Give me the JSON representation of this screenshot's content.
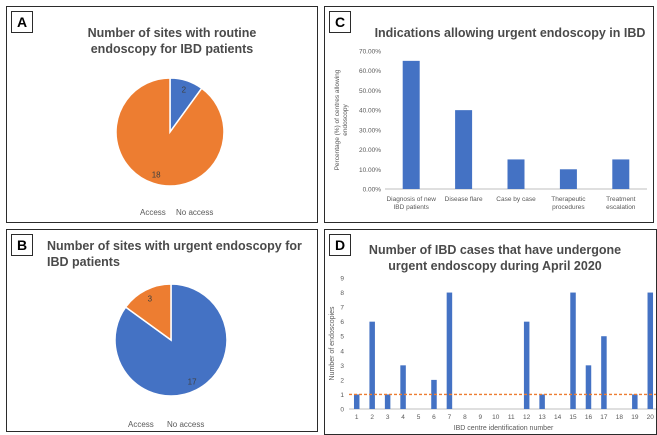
{
  "panels": {
    "a": {
      "letter": "A"
    },
    "b": {
      "letter": "B"
    },
    "c": {
      "letter": "C"
    },
    "d": {
      "letter": "D"
    }
  },
  "chart_data": [
    {
      "id": "A",
      "type": "pie",
      "title": "Number of sites with routine endoscopy for IBD patients",
      "labels": [
        "Access",
        "No access"
      ],
      "values": [
        2,
        18
      ],
      "colors": [
        "#4472c4",
        "#ed7d31"
      ],
      "legend_position": "bottom"
    },
    {
      "id": "B",
      "type": "pie",
      "title": "Number of sites with urgent endoscopy for IBD patients",
      "labels": [
        "Access",
        "No access"
      ],
      "values": [
        17,
        3
      ],
      "colors": [
        "#4472c4",
        "#ed7d31"
      ],
      "legend_position": "bottom"
    },
    {
      "id": "C",
      "type": "bar",
      "title": "Indications allowing urgent endoscopy in IBD",
      "categories": [
        "Diagnosis of new IBD patients",
        "Disease flare",
        "Case by case",
        "Therapeutic procedures",
        "Treatment escalation"
      ],
      "values": [
        65,
        40,
        15,
        10,
        15
      ],
      "ylabel": "Percentage (%) of centres allowing endoscopy",
      "ylim": [
        0,
        70
      ],
      "yticks": [
        "0.00%",
        "10.00%",
        "20.00%",
        "30.00%",
        "40.00%",
        "50.00%",
        "60.00%",
        "70.00%"
      ],
      "color": "#4472c4"
    },
    {
      "id": "D",
      "type": "bar",
      "title": "Number of IBD cases that have undergone urgent endoscopy during April 2020",
      "x": [
        "1",
        "2",
        "3",
        "4",
        "5",
        "6",
        "7",
        "8",
        "9",
        "10",
        "11",
        "12",
        "13",
        "14",
        "15",
        "16",
        "17",
        "18",
        "19",
        "20"
      ],
      "values": [
        1,
        6,
        1,
        3,
        0,
        2,
        8,
        0,
        0,
        0,
        0,
        6,
        1,
        0,
        8,
        3,
        5,
        0,
        1,
        8
      ],
      "xlabel": "IBD centre identification number",
      "ylabel": "Number of endoscopies",
      "ylim": [
        0,
        9
      ],
      "yticks": [
        "0",
        "1",
        "2",
        "3",
        "4",
        "5",
        "6",
        "7",
        "8",
        "9"
      ],
      "reference_line": 1,
      "color": "#4472c4",
      "reference_color": "#ed7d31"
    }
  ]
}
